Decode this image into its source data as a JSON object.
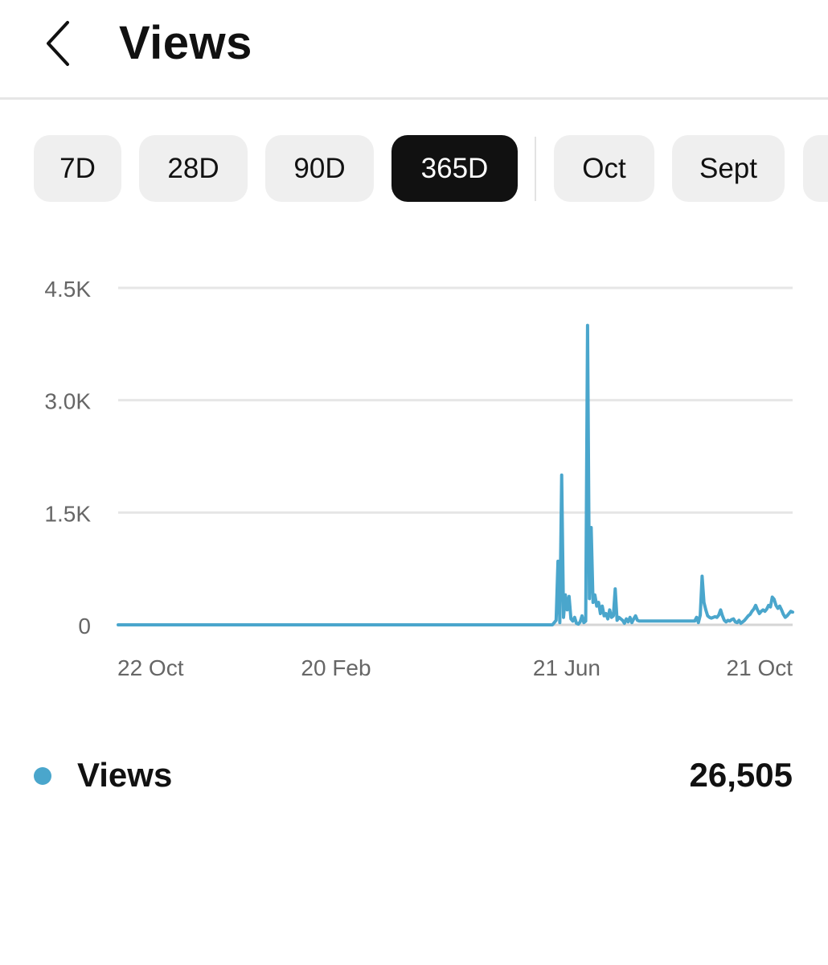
{
  "header": {
    "title": "Views",
    "back_icon": "chevron-left-icon"
  },
  "tabs": [
    {
      "label": "7D",
      "active": false
    },
    {
      "label": "28D",
      "active": false
    },
    {
      "label": "90D",
      "active": false
    },
    {
      "label": "365D",
      "active": true
    },
    {
      "label": "Oct",
      "active": false
    },
    {
      "label": "Sept",
      "active": false
    },
    {
      "label": "",
      "active": false
    }
  ],
  "colors": {
    "series": "#4aa6cc",
    "active_tab_bg": "#111111",
    "tab_bg": "#efefef",
    "grid": "#e6e6e6",
    "axis_text": "#666666"
  },
  "chart_data": {
    "type": "line",
    "title": "",
    "xlabel": "",
    "ylabel": "",
    "ylim": [
      0,
      4500
    ],
    "y_ticks": [
      "0",
      "1.5K",
      "3.0K",
      "4.5K"
    ],
    "x_tick_labels": [
      "22 Oct",
      "20 Feb",
      "21 Jun",
      "21 Oct"
    ],
    "grid": true,
    "series": [
      {
        "name": "Views",
        "points": [
          [
            "2023-10-22",
            0
          ],
          [
            "2024-06-13",
            0
          ],
          [
            "2024-06-14",
            30
          ],
          [
            "2024-06-15",
            60
          ],
          [
            "2024-06-16",
            850
          ],
          [
            "2024-06-17",
            30
          ],
          [
            "2024-06-18",
            2000
          ],
          [
            "2024-06-19",
            100
          ],
          [
            "2024-06-20",
            400
          ],
          [
            "2024-06-21",
            200
          ],
          [
            "2024-06-22",
            380
          ],
          [
            "2024-06-23",
            80
          ],
          [
            "2024-06-24",
            50
          ],
          [
            "2024-06-25",
            100
          ],
          [
            "2024-06-26",
            20
          ],
          [
            "2024-06-27",
            10
          ],
          [
            "2024-06-28",
            40
          ],
          [
            "2024-06-29",
            120
          ],
          [
            "2024-06-30",
            30
          ],
          [
            "2024-07-01",
            50
          ],
          [
            "2024-07-02",
            4000
          ],
          [
            "2024-07-03",
            350
          ],
          [
            "2024-07-04",
            1300
          ],
          [
            "2024-07-05",
            300
          ],
          [
            "2024-07-06",
            400
          ],
          [
            "2024-07-07",
            250
          ],
          [
            "2024-07-08",
            300
          ],
          [
            "2024-07-09",
            150
          ],
          [
            "2024-07-10",
            250
          ],
          [
            "2024-07-11",
            120
          ],
          [
            "2024-07-12",
            150
          ],
          [
            "2024-07-13",
            80
          ],
          [
            "2024-07-14",
            200
          ],
          [
            "2024-07-15",
            100
          ],
          [
            "2024-07-16",
            120
          ],
          [
            "2024-07-17",
            480
          ],
          [
            "2024-07-18",
            60
          ],
          [
            "2024-07-19",
            100
          ],
          [
            "2024-07-20",
            80
          ],
          [
            "2024-07-21",
            60
          ],
          [
            "2024-07-22",
            20
          ],
          [
            "2024-07-23",
            80
          ],
          [
            "2024-07-24",
            40
          ],
          [
            "2024-07-25",
            100
          ],
          [
            "2024-07-26",
            30
          ],
          [
            "2024-07-27",
            80
          ],
          [
            "2024-07-28",
            120
          ],
          [
            "2024-07-29",
            60
          ],
          [
            "2024-07-30",
            50
          ],
          [
            "2024-08-29",
            50
          ],
          [
            "2024-08-30",
            100
          ],
          [
            "2024-08-31",
            30
          ],
          [
            "2024-09-01",
            130
          ],
          [
            "2024-09-02",
            650
          ],
          [
            "2024-09-03",
            300
          ],
          [
            "2024-09-04",
            200
          ],
          [
            "2024-09-05",
            120
          ],
          [
            "2024-09-06",
            100
          ],
          [
            "2024-09-07",
            90
          ],
          [
            "2024-09-08",
            100
          ],
          [
            "2024-09-09",
            110
          ],
          [
            "2024-09-10",
            100
          ],
          [
            "2024-09-11",
            130
          ],
          [
            "2024-09-12",
            200
          ],
          [
            "2024-09-13",
            120
          ],
          [
            "2024-09-14",
            60
          ],
          [
            "2024-09-15",
            40
          ],
          [
            "2024-09-16",
            60
          ],
          [
            "2024-09-17",
            50
          ],
          [
            "2024-09-18",
            70
          ],
          [
            "2024-09-19",
            80
          ],
          [
            "2024-09-20",
            40
          ],
          [
            "2024-09-21",
            30
          ],
          [
            "2024-09-22",
            60
          ],
          [
            "2024-09-23",
            20
          ],
          [
            "2024-09-24",
            40
          ],
          [
            "2024-09-25",
            60
          ],
          [
            "2024-09-26",
            90
          ],
          [
            "2024-09-27",
            120
          ],
          [
            "2024-09-28",
            140
          ],
          [
            "2024-09-29",
            180
          ],
          [
            "2024-09-30",
            210
          ],
          [
            "2024-10-01",
            260
          ],
          [
            "2024-10-02",
            200
          ],
          [
            "2024-10-03",
            150
          ],
          [
            "2024-10-04",
            180
          ],
          [
            "2024-10-05",
            200
          ],
          [
            "2024-10-06",
            180
          ],
          [
            "2024-10-07",
            210
          ],
          [
            "2024-10-08",
            260
          ],
          [
            "2024-10-09",
            240
          ],
          [
            "2024-10-10",
            370
          ],
          [
            "2024-10-11",
            340
          ],
          [
            "2024-10-12",
            260
          ],
          [
            "2024-10-13",
            220
          ],
          [
            "2024-10-14",
            250
          ],
          [
            "2024-10-15",
            200
          ],
          [
            "2024-10-16",
            140
          ],
          [
            "2024-10-17",
            100
          ],
          [
            "2024-10-18",
            120
          ],
          [
            "2024-10-19",
            150
          ],
          [
            "2024-10-20",
            180
          ],
          [
            "2024-10-21",
            170
          ]
        ]
      }
    ]
  },
  "legend": {
    "label": "Views",
    "total": "26,505"
  }
}
